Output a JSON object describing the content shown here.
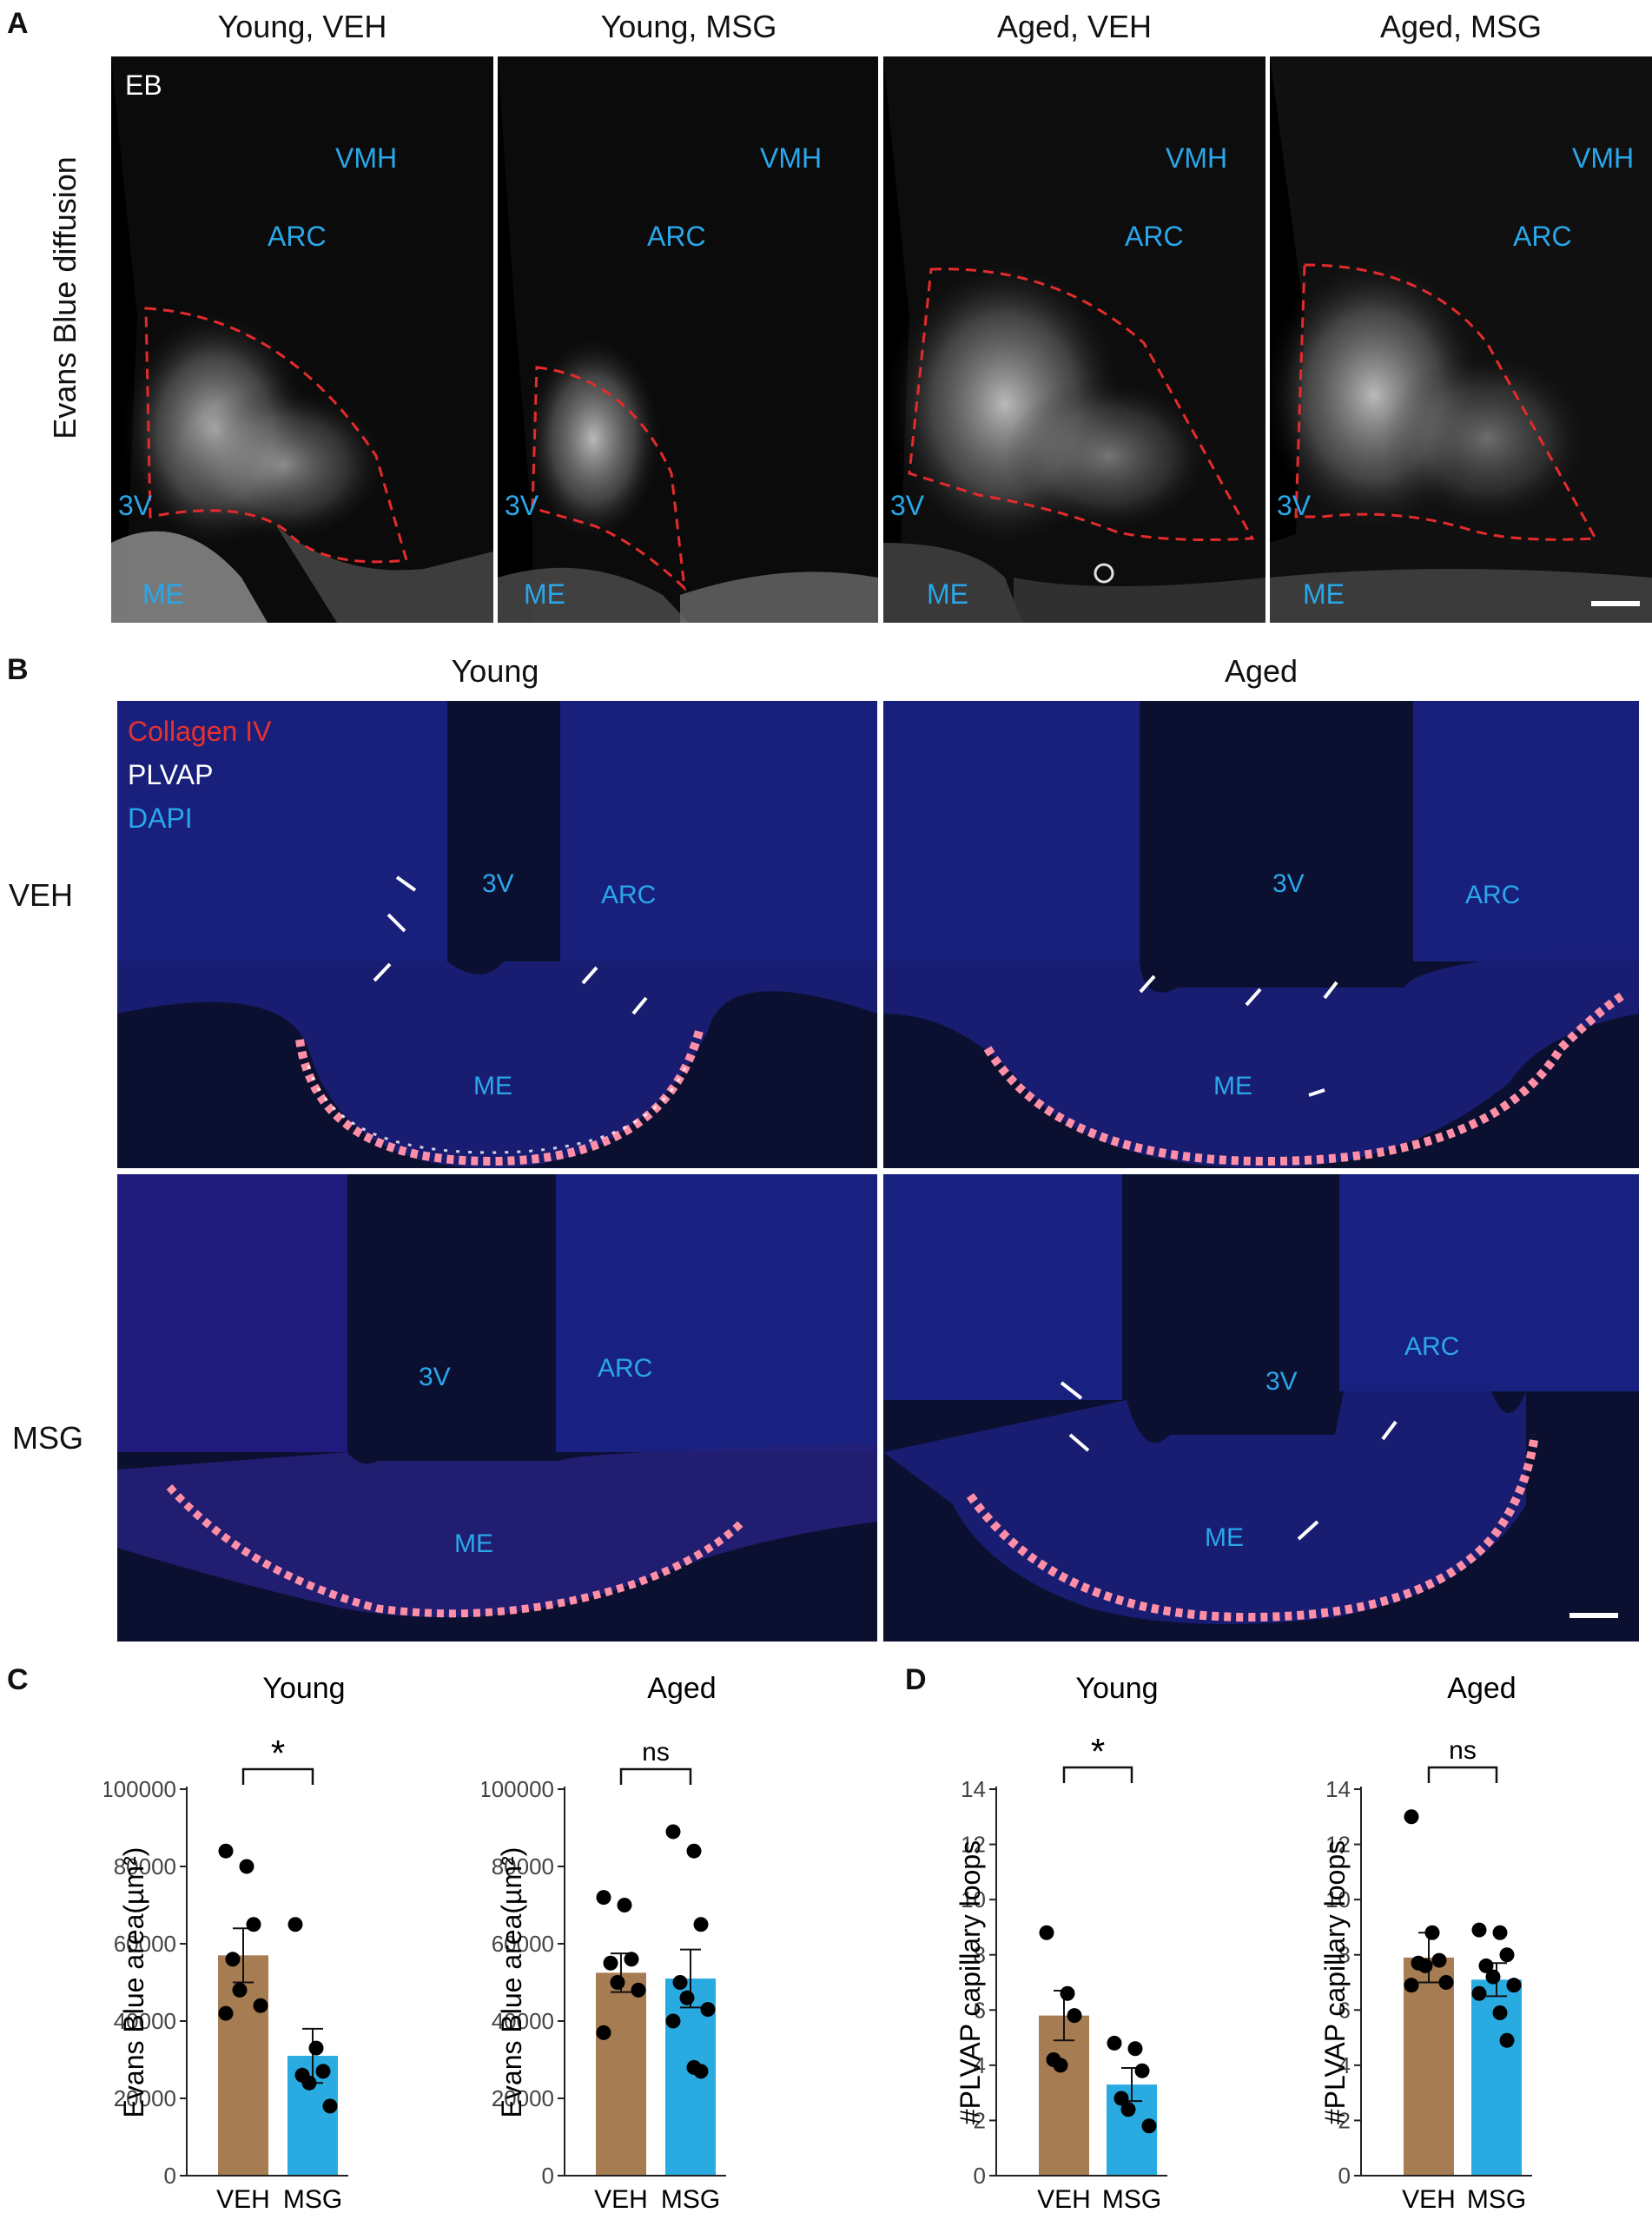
{
  "panel_a": {
    "letter": "A",
    "ylabel": "Evans Blue diffusion",
    "columns": [
      "Young, VEH",
      "Young, MSG",
      "Aged, VEH",
      "Aged, MSG"
    ],
    "eb_label": "EB",
    "regions": {
      "vmh": "VMH",
      "arc": "ARC",
      "v3": "3V",
      "me": "ME"
    }
  },
  "panel_b": {
    "letter": "B",
    "col_headers": [
      "Young",
      "Aged"
    ],
    "row_labels": [
      "VEH",
      "MSG"
    ],
    "legend": [
      {
        "text": "Collagen IV",
        "color": "#e8312f"
      },
      {
        "text": "PLVAP",
        "color": "#ffffff"
      },
      {
        "text": "DAPI",
        "color": "#2aa7ea"
      }
    ],
    "regions": {
      "v3": "3V",
      "arc": "ARC",
      "me": "ME"
    }
  },
  "panel_c": {
    "letter": "C"
  },
  "panel_d": {
    "letter": "D"
  },
  "chart_data": [
    {
      "panel": "C",
      "type": "bar",
      "title": "Young",
      "ylabel": "Evans Blue area(µm²)",
      "categories": [
        "VEH",
        "MSG"
      ],
      "values": [
        57000,
        31000
      ],
      "sem": [
        7000,
        7000
      ],
      "points": [
        [
          84000,
          80000,
          65000,
          56000,
          48000,
          44000,
          42000
        ],
        [
          65000,
          33000,
          27000,
          26000,
          24000,
          18000
        ]
      ],
      "colors": [
        "#a67c52",
        "#29abe2"
      ],
      "ylim": [
        0,
        100000
      ],
      "yticks": [
        0,
        20000,
        40000,
        60000,
        80000,
        100000
      ],
      "significance": "*"
    },
    {
      "panel": "C",
      "type": "bar",
      "title": "Aged",
      "ylabel": "Evans Blue area(µm²)",
      "categories": [
        "VEH",
        "MSG"
      ],
      "values": [
        52500,
        51000
      ],
      "sem": [
        5000,
        7500
      ],
      "points": [
        [
          72000,
          70000,
          56000,
          55000,
          50000,
          48000,
          37000
        ],
        [
          89000,
          84000,
          65000,
          50000,
          46000,
          43000,
          40000,
          28000,
          27000
        ]
      ],
      "colors": [
        "#a67c52",
        "#29abe2"
      ],
      "ylim": [
        0,
        100000
      ],
      "yticks": [
        0,
        20000,
        40000,
        60000,
        80000,
        100000
      ],
      "significance": "ns"
    },
    {
      "panel": "D",
      "type": "bar",
      "title": "Young",
      "ylabel": "#PLVAP capillary loops",
      "categories": [
        "VEH",
        "MSG"
      ],
      "values": [
        5.8,
        3.3
      ],
      "sem": [
        0.9,
        0.6
      ],
      "points": [
        [
          8.8,
          6.6,
          5.8,
          4.2,
          4.0
        ],
        [
          4.8,
          4.6,
          3.8,
          2.8,
          2.4,
          1.8
        ]
      ],
      "colors": [
        "#a67c52",
        "#29abe2"
      ],
      "ylim": [
        0,
        14
      ],
      "yticks": [
        0,
        2,
        4,
        6,
        8,
        10,
        12,
        14
      ],
      "significance": "*"
    },
    {
      "panel": "D",
      "type": "bar",
      "title": "Aged",
      "ylabel": "#PLVAP capillary loops",
      "categories": [
        "VEH",
        "MSG"
      ],
      "values": [
        7.9,
        7.1
      ],
      "sem": [
        0.9,
        0.6
      ],
      "points": [
        [
          13.0,
          8.8,
          7.8,
          7.7,
          7.6,
          7.0,
          6.9
        ],
        [
          8.9,
          8.8,
          8.0,
          7.6,
          7.2,
          6.9,
          6.6,
          5.9,
          4.9
        ]
      ],
      "colors": [
        "#a67c52",
        "#29abe2"
      ],
      "ylim": [
        0,
        14
      ],
      "yticks": [
        0,
        2,
        4,
        6,
        8,
        10,
        12,
        14
      ],
      "significance": "ns"
    }
  ]
}
